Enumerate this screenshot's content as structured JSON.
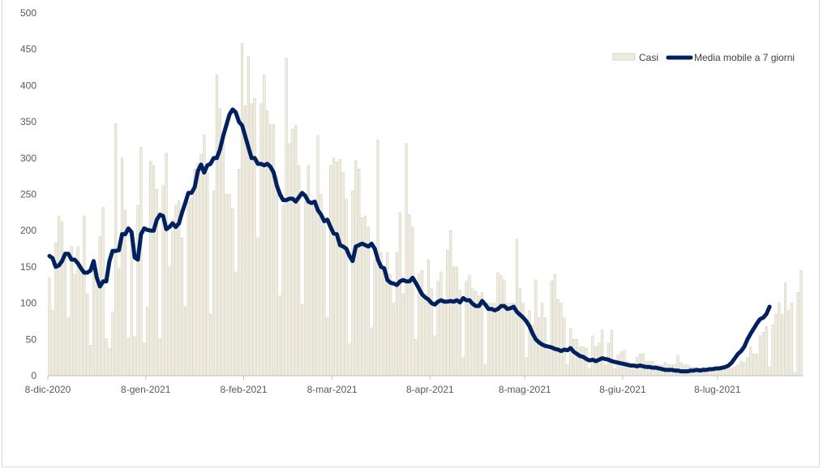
{
  "chart_data": {
    "type": "bar",
    "title": "",
    "xlabel": "",
    "ylabel": "",
    "ylim": [
      0,
      500
    ],
    "y_ticks": [
      0,
      50,
      100,
      150,
      200,
      250,
      300,
      350,
      400,
      450,
      500
    ],
    "x_start": "2020-12-08",
    "x_ticks": [
      {
        "label": "8-dic-2020",
        "date": "2020-12-08"
      },
      {
        "label": "8-gen-2021",
        "date": "2021-01-08"
      },
      {
        "label": "8-feb-2021",
        "date": "2021-02-08"
      },
      {
        "label": "8-mar-2021",
        "date": "2021-03-08"
      },
      {
        "label": "8-apr-2021",
        "date": "2021-04-08"
      },
      {
        "label": "8-mag-2021",
        "date": "2021-05-08"
      },
      {
        "label": "8-giu-2021",
        "date": "2021-06-08"
      },
      {
        "label": "8-lug-2021",
        "date": "2021-07-08"
      }
    ],
    "grid": false,
    "legend_position": "top-right",
    "colors": {
      "bars": "#eeece1",
      "bar_edge": "#c9c2a6",
      "line": "#002060",
      "axis": "#bfbfbf"
    },
    "series": [
      {
        "name": "Casi",
        "type": "bar",
        "values": [
          135,
          90,
          183,
          220,
          212,
          168,
          80,
          178,
          140,
          178,
          150,
          220,
          113,
          42,
          155,
          125,
          192,
          232,
          51,
          38,
          88,
          347,
          148,
          300,
          228,
          52,
          180,
          54,
          235,
          315,
          45,
          95,
          296,
          290,
          257,
          51,
          262,
          307,
          150,
          215,
          235,
          241,
          190,
          95,
          240,
          245,
          285,
          292,
          305,
          332,
          280,
          85,
          255,
          415,
          368,
          335,
          250,
          250,
          230,
          143,
          285,
          458,
          372,
          440,
          375,
          382,
          190,
          375,
          415,
          365,
          346,
          346,
          275,
          110,
          235,
          438,
          320,
          340,
          345,
          290,
          98,
          240,
          290,
          240,
          234,
          331,
          250,
          210,
          80,
          290,
          300,
          295,
          298,
          280,
          243,
          44,
          255,
          296,
          285,
          218,
          220,
          205,
          66,
          160,
          325,
          170,
          150,
          170,
          140,
          100,
          170,
          225,
          113,
          320,
          222,
          205,
          50,
          140,
          145,
          108,
          160,
          120,
          55,
          130,
          143,
          100,
          173,
          200,
          150,
          150,
          118,
          25,
          130,
          138,
          120,
          116,
          110,
          115,
          15,
          100,
          100,
          100,
          142,
          138,
          132,
          100,
          100,
          100,
          188,
          120,
          100,
          25,
          90,
          70,
          132,
          80,
          100,
          80,
          35,
          130,
          140,
          105,
          100,
          80,
          15,
          65,
          50,
          50,
          40,
          40,
          38,
          10,
          55,
          40,
          45,
          63,
          15,
          45,
          63,
          10,
          28,
          33,
          35,
          20,
          15,
          15,
          25,
          30,
          30,
          20,
          20,
          20,
          15,
          15,
          15,
          18,
          15,
          15,
          15,
          28,
          18,
          15,
          15,
          12,
          12,
          10,
          10,
          12,
          10,
          10,
          10,
          10,
          8,
          8,
          10,
          10,
          10,
          12,
          15,
          20,
          18,
          25,
          40,
          30,
          30,
          55,
          60,
          68,
          12,
          70,
          85,
          100,
          85,
          128,
          90,
          100,
          5,
          115,
          145
        ]
      },
      {
        "name": "Media mobile a 7 giorni",
        "type": "line",
        "values": [
          165,
          162,
          150,
          152,
          158,
          168,
          168,
          160,
          160,
          155,
          148,
          142,
          142,
          145,
          158,
          135,
          123,
          130,
          130,
          158,
          172,
          172,
          173,
          195,
          195,
          203,
          198,
          163,
          160,
          195,
          203,
          201,
          200,
          200,
          215,
          222,
          220,
          202,
          205,
          210,
          205,
          210,
          225,
          238,
          252,
          252,
          260,
          282,
          291,
          280,
          290,
          292,
          300,
          300,
          312,
          330,
          345,
          360,
          367,
          363,
          350,
          345,
          330,
          315,
          300,
          300,
          292,
          292,
          290,
          292,
          288,
          280,
          262,
          250,
          242,
          242,
          244,
          244,
          240,
          246,
          252,
          248,
          240,
          238,
          240,
          228,
          222,
          213,
          215,
          205,
          196,
          195,
          180,
          178,
          175,
          165,
          158,
          178,
          180,
          182,
          180,
          178,
          182,
          175,
          160,
          150,
          148,
          132,
          128,
          127,
          125,
          130,
          132,
          130,
          130,
          135,
          128,
          120,
          112,
          108,
          105,
          100,
          98,
          102,
          104,
          102,
          102,
          103,
          102,
          104,
          101,
          107,
          104,
          104,
          99,
          96,
          96,
          103,
          98,
          92,
          92,
          90,
          92,
          96,
          96,
          92,
          93,
          95,
          88,
          84,
          80,
          75,
          68,
          58,
          50,
          46,
          43,
          41,
          40,
          39,
          37,
          36,
          34,
          36,
          35,
          38,
          33,
          30,
          27,
          26,
          23,
          21,
          22,
          20,
          22,
          24,
          23,
          22,
          20,
          19,
          18,
          17,
          16,
          15,
          14,
          14,
          13,
          14,
          13,
          12,
          12,
          11,
          11,
          10,
          9,
          8,
          8,
          8,
          7,
          7,
          6,
          6,
          6,
          7,
          7,
          8,
          7,
          8,
          8,
          9,
          9,
          10,
          10,
          11,
          12,
          14,
          18,
          24,
          30,
          34,
          40,
          50,
          58,
          65,
          72,
          78,
          80,
          85,
          95
        ]
      }
    ]
  }
}
